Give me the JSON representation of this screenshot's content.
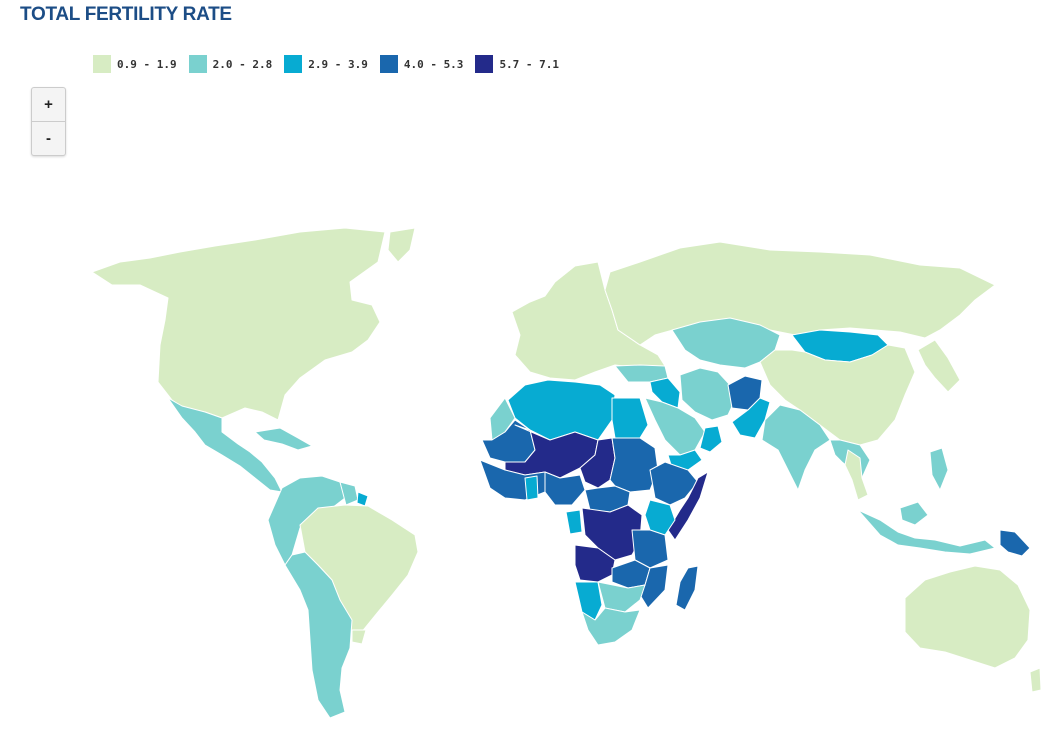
{
  "title": "TOTAL FERTILITY RATE",
  "legend": [
    {
      "label": "0.9 - 1.9",
      "color": "#d7ecc3"
    },
    {
      "label": "2.0 - 2.8",
      "color": "#7ad1cf"
    },
    {
      "label": "2.9 - 3.9",
      "color": "#07abd2"
    },
    {
      "label": "4.0 - 5.3",
      "color": "#1a67ad"
    },
    {
      "label": "5.7 - 7.1",
      "color": "#232a8a"
    }
  ],
  "zoom": {
    "in_label": "+",
    "out_label": "-"
  },
  "map_regions": [
    {
      "name": "north-america",
      "class": 0
    },
    {
      "name": "greenland",
      "class": 0
    },
    {
      "name": "mexico-central-america",
      "class": 1
    },
    {
      "name": "caribbean",
      "class": 1
    },
    {
      "name": "northern-south-america",
      "class": 1
    },
    {
      "name": "guyana-suriname",
      "class": 1
    },
    {
      "name": "french-guiana",
      "class": 2
    },
    {
      "name": "brazil",
      "class": 0
    },
    {
      "name": "andes-southern-cone",
      "class": 1
    },
    {
      "name": "uruguay",
      "class": 0
    },
    {
      "name": "europe",
      "class": 0
    },
    {
      "name": "russia-north-asia",
      "class": 0
    },
    {
      "name": "central-asia",
      "class": 1
    },
    {
      "name": "mongolia",
      "class": 2
    },
    {
      "name": "china",
      "class": 0
    },
    {
      "name": "korea-japan",
      "class": 0
    },
    {
      "name": "turkey",
      "class": 1
    },
    {
      "name": "iran",
      "class": 1
    },
    {
      "name": "iraq-syria",
      "class": 2
    },
    {
      "name": "saudi-arabia",
      "class": 1
    },
    {
      "name": "yemen",
      "class": 2
    },
    {
      "name": "oman",
      "class": 2
    },
    {
      "name": "afghanistan",
      "class": 3
    },
    {
      "name": "pakistan",
      "class": 2
    },
    {
      "name": "india",
      "class": 1
    },
    {
      "name": "southeast-asia-mainland",
      "class": 1
    },
    {
      "name": "thailand",
      "class": 0
    },
    {
      "name": "indonesia-malaysia",
      "class": 1
    },
    {
      "name": "philippines",
      "class": 1
    },
    {
      "name": "papua-new-guinea",
      "class": 3
    },
    {
      "name": "australia",
      "class": 0
    },
    {
      "name": "new-zealand",
      "class": 0
    },
    {
      "name": "north-africa-west",
      "class": 2
    },
    {
      "name": "morocco",
      "class": 1
    },
    {
      "name": "egypt",
      "class": 2
    },
    {
      "name": "mauritania-senegal",
      "class": 3
    },
    {
      "name": "mali-niger",
      "class": 4
    },
    {
      "name": "chad",
      "class": 4
    },
    {
      "name": "sudan",
      "class": 3
    },
    {
      "name": "ethiopia",
      "class": 3
    },
    {
      "name": "somalia",
      "class": 4
    },
    {
      "name": "west-africa-coast",
      "class": 3
    },
    {
      "name": "ghana",
      "class": 2
    },
    {
      "name": "nigeria",
      "class": 3
    },
    {
      "name": "central-african-republic",
      "class": 3
    },
    {
      "name": "congo-basin",
      "class": 4
    },
    {
      "name": "gabon",
      "class": 2
    },
    {
      "name": "kenya",
      "class": 2
    },
    {
      "name": "tanzania",
      "class": 3
    },
    {
      "name": "angola",
      "class": 4
    },
    {
      "name": "zambia-malawi",
      "class": 3
    },
    {
      "name": "mozambique",
      "class": 3
    },
    {
      "name": "namibia",
      "class": 2
    },
    {
      "name": "botswana-zimbabwe",
      "class": 1
    },
    {
      "name": "south-africa",
      "class": 1
    },
    {
      "name": "madagascar",
      "class": 3
    }
  ]
}
